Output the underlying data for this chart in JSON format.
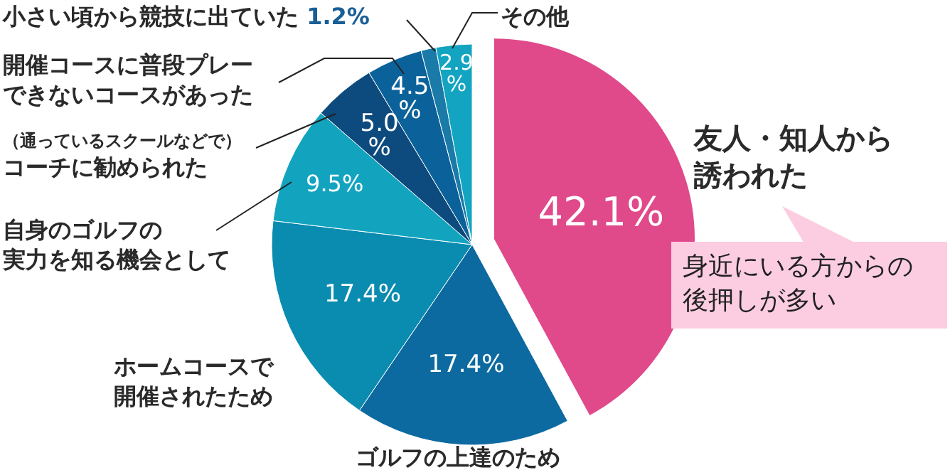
{
  "chart_data": {
    "type": "pie",
    "categories": [
      "友人・知人から誘われた",
      "ゴルフの上達のため",
      "ホームコースで開催されたため",
      "自身のゴルフの実力を知る機会として",
      "（通っているスクールなどで）コーチに勧められた",
      "開催コースに普段プレーできないコースがあった",
      "小さい頃から競技に出ていた",
      "その他"
    ],
    "values": [
      42.1,
      17.4,
      17.4,
      9.5,
      5.0,
      4.5,
      1.2,
      2.9
    ],
    "colors": [
      "#e0498a",
      "#0d6aa0",
      "#0a8bb0",
      "#12a4bf",
      "#0d4a7e",
      "#0b629a",
      "#1a7aa8",
      "#12a4c0"
    ],
    "value_labels": [
      "42.1%",
      "17.4%",
      "17.4%",
      "9.5%",
      "5.0%",
      "4.5%",
      "1.2%",
      "2.9%"
    ],
    "annotations": [
      "身近にいる方からの後押しが多い"
    ]
  }
}
